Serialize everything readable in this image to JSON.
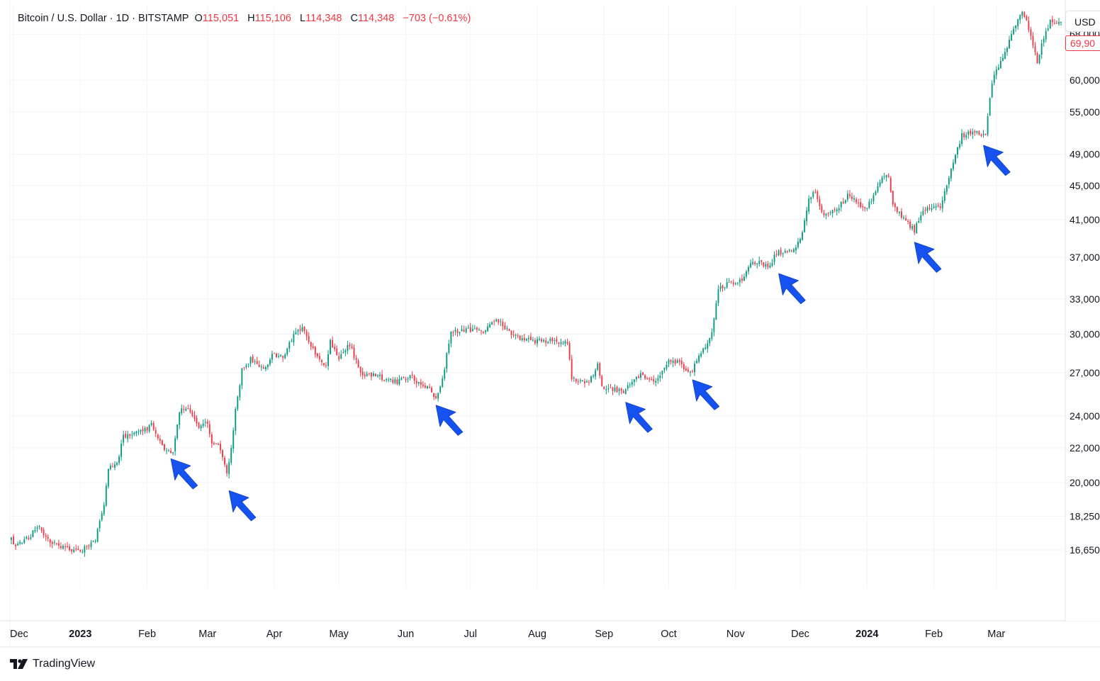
{
  "header": {
    "symbol": "Bitcoin / U.S. Dollar · 1D · BITSTAMP",
    "open_label": "O",
    "open_value": "115,051",
    "high_label": "H",
    "high_value": "115,106",
    "low_label": "L",
    "low_value": "114,348",
    "close_label": "C",
    "close_value": "114,348",
    "change": "−703 (−0.61%)"
  },
  "axis": {
    "currency_button": "USD",
    "last_price_tag": "69,90"
  },
  "footer": {
    "brand": "TradingView"
  },
  "colors": {
    "up": "#089981",
    "down": "#f23645",
    "arrow": "#1652f0",
    "grid": "#f0f3fa",
    "text": "#131722"
  },
  "chart_data": {
    "type": "candlestick",
    "y_scale": "log",
    "ylim": [
      15000,
      73500
    ],
    "y_ticks": [
      16650,
      18250,
      20000,
      22000,
      24000,
      27000,
      30000,
      33000,
      37000,
      41000,
      45000,
      49000,
      55000,
      60000,
      68000
    ],
    "y_tick_labels": [
      "16,650",
      "18,250",
      "20,000",
      "22,000",
      "24,000",
      "27,000",
      "30,000",
      "33,000",
      "37,000",
      "41,000",
      "45,000",
      "49,000",
      "55,000",
      "60,000",
      "68,000"
    ],
    "x_range": [
      "2022-11-30",
      "2024-03-31"
    ],
    "x_ticks": [
      {
        "date": "2022-12-01",
        "label": "Dec",
        "bold": false
      },
      {
        "date": "2023-01-01",
        "label": "2023",
        "bold": true
      },
      {
        "date": "2023-02-01",
        "label": "Feb",
        "bold": false
      },
      {
        "date": "2023-03-01",
        "label": "Mar",
        "bold": false
      },
      {
        "date": "2023-04-01",
        "label": "Apr",
        "bold": false
      },
      {
        "date": "2023-05-01",
        "label": "May",
        "bold": false
      },
      {
        "date": "2023-06-01",
        "label": "Jun",
        "bold": false
      },
      {
        "date": "2023-07-01",
        "label": "Jul",
        "bold": false
      },
      {
        "date": "2023-08-01",
        "label": "Aug",
        "bold": false
      },
      {
        "date": "2023-09-01",
        "label": "Sep",
        "bold": false
      },
      {
        "date": "2023-10-01",
        "label": "Oct",
        "bold": false
      },
      {
        "date": "2023-11-01",
        "label": "Nov",
        "bold": false
      },
      {
        "date": "2023-12-01",
        "label": "Dec",
        "bold": false
      },
      {
        "date": "2024-01-01",
        "label": "2024",
        "bold": true
      },
      {
        "date": "2024-02-01",
        "label": "Feb",
        "bold": false
      },
      {
        "date": "2024-03-01",
        "label": "Mar",
        "bold": false
      }
    ],
    "close_path": [
      [
        "2022-11-30",
        17100
      ],
      [
        "2022-12-02",
        16900
      ],
      [
        "2022-12-08",
        17200
      ],
      [
        "2022-12-13",
        17800
      ],
      [
        "2022-12-15",
        17350
      ],
      [
        "2022-12-21",
        16850
      ],
      [
        "2022-12-31",
        16550
      ],
      [
        "2023-01-08",
        17100
      ],
      [
        "2023-01-12",
        18850
      ],
      [
        "2023-01-14",
        20800
      ],
      [
        "2023-01-18",
        21100
      ],
      [
        "2023-01-21",
        22700
      ],
      [
        "2023-01-31",
        23100
      ],
      [
        "2023-02-03",
        23400
      ],
      [
        "2023-02-09",
        22000
      ],
      [
        "2023-02-13",
        21800
      ],
      [
        "2023-02-16",
        24300
      ],
      [
        "2023-02-20",
        24600
      ],
      [
        "2023-02-25",
        23300
      ],
      [
        "2023-03-01",
        23500
      ],
      [
        "2023-03-03",
        22300
      ],
      [
        "2023-03-07",
        22000
      ],
      [
        "2023-03-10",
        20400
      ],
      [
        "2023-03-12",
        22000
      ],
      [
        "2023-03-14",
        24500
      ],
      [
        "2023-03-17",
        27200
      ],
      [
        "2023-03-21",
        28000
      ],
      [
        "2023-03-28",
        27300
      ],
      [
        "2023-03-31",
        28400
      ],
      [
        "2023-04-05",
        28200
      ],
      [
        "2023-04-11",
        30200
      ],
      [
        "2023-04-14",
        30500
      ],
      [
        "2023-04-20",
        28400
      ],
      [
        "2023-04-25",
        27500
      ],
      [
        "2023-04-27",
        29400
      ],
      [
        "2023-05-01",
        28000
      ],
      [
        "2023-05-06",
        29200
      ],
      [
        "2023-05-11",
        26900
      ],
      [
        "2023-05-20",
        26700
      ],
      [
        "2023-05-28",
        26300
      ],
      [
        "2023-06-04",
        26800
      ],
      [
        "2023-06-07",
        26200
      ],
      [
        "2023-06-12",
        25900
      ],
      [
        "2023-06-15",
        25200
      ],
      [
        "2023-06-18",
        26400
      ],
      [
        "2023-06-20",
        28300
      ],
      [
        "2023-06-22",
        30100
      ],
      [
        "2023-06-30",
        30400
      ],
      [
        "2023-07-07",
        30200
      ],
      [
        "2023-07-13",
        31300
      ],
      [
        "2023-07-21",
        29800
      ],
      [
        "2023-07-31",
        29400
      ],
      [
        "2023-08-09",
        29500
      ],
      [
        "2023-08-15",
        29200
      ],
      [
        "2023-08-17",
        26600
      ],
      [
        "2023-08-24",
        26200
      ],
      [
        "2023-08-29",
        27500
      ],
      [
        "2023-08-31",
        26000
      ],
      [
        "2023-09-10",
        25700
      ],
      [
        "2023-09-12",
        26000
      ],
      [
        "2023-09-18",
        26800
      ],
      [
        "2023-09-25",
        26300
      ],
      [
        "2023-10-01",
        27800
      ],
      [
        "2023-10-06",
        27800
      ],
      [
        "2023-10-11",
        26900
      ],
      [
        "2023-10-16",
        28400
      ],
      [
        "2023-10-21",
        30000
      ],
      [
        "2023-10-23",
        32500
      ],
      [
        "2023-10-24",
        34000
      ],
      [
        "2023-10-31",
        34600
      ],
      [
        "2023-11-05",
        35000
      ],
      [
        "2023-11-09",
        36600
      ],
      [
        "2023-11-17",
        36200
      ],
      [
        "2023-11-20",
        37400
      ],
      [
        "2023-11-26",
        37600
      ],
      [
        "2023-12-01",
        38700
      ],
      [
        "2023-12-05",
        43500
      ],
      [
        "2023-12-08",
        44200
      ],
      [
        "2023-12-12",
        41400
      ],
      [
        "2023-12-18",
        42300
      ],
      [
        "2023-12-23",
        43700
      ],
      [
        "2023-12-31",
        42300
      ],
      [
        "2024-01-03",
        43000
      ],
      [
        "2024-01-08",
        46000
      ],
      [
        "2024-01-11",
        46300
      ],
      [
        "2024-01-13",
        42800
      ],
      [
        "2024-01-18",
        41200
      ],
      [
        "2024-01-23",
        39800
      ],
      [
        "2024-01-27",
        42000
      ],
      [
        "2024-02-04",
        42600
      ],
      [
        "2024-02-09",
        47200
      ],
      [
        "2024-02-14",
        51600
      ],
      [
        "2024-02-20",
        52000
      ],
      [
        "2024-02-25",
        51600
      ],
      [
        "2024-02-27",
        57000
      ],
      [
        "2024-02-29",
        61200
      ],
      [
        "2024-03-04",
        63500
      ],
      [
        "2024-03-08",
        68200
      ],
      [
        "2024-03-12",
        72000
      ],
      [
        "2024-03-14",
        71500
      ],
      [
        "2024-03-17",
        68000
      ],
      [
        "2024-03-20",
        62800
      ],
      [
        "2024-03-22",
        66500
      ],
      [
        "2024-03-26",
        70300
      ],
      [
        "2024-03-31",
        69900
      ]
    ],
    "annotations": [
      {
        "type": "arrow",
        "date": "2023-02-12",
        "price": 21600
      },
      {
        "type": "arrow",
        "date": "2023-03-11",
        "price": 19800
      },
      {
        "type": "arrow",
        "date": "2023-06-15",
        "price": 25000
      },
      {
        "type": "arrow",
        "date": "2023-09-11",
        "price": 25200
      },
      {
        "type": "arrow",
        "date": "2023-10-12",
        "price": 26800
      },
      {
        "type": "arrow",
        "date": "2023-11-21",
        "price": 35800
      },
      {
        "type": "arrow",
        "date": "2024-01-23",
        "price": 39000
      },
      {
        "type": "arrow",
        "date": "2024-02-24",
        "price": 50800
      }
    ]
  }
}
